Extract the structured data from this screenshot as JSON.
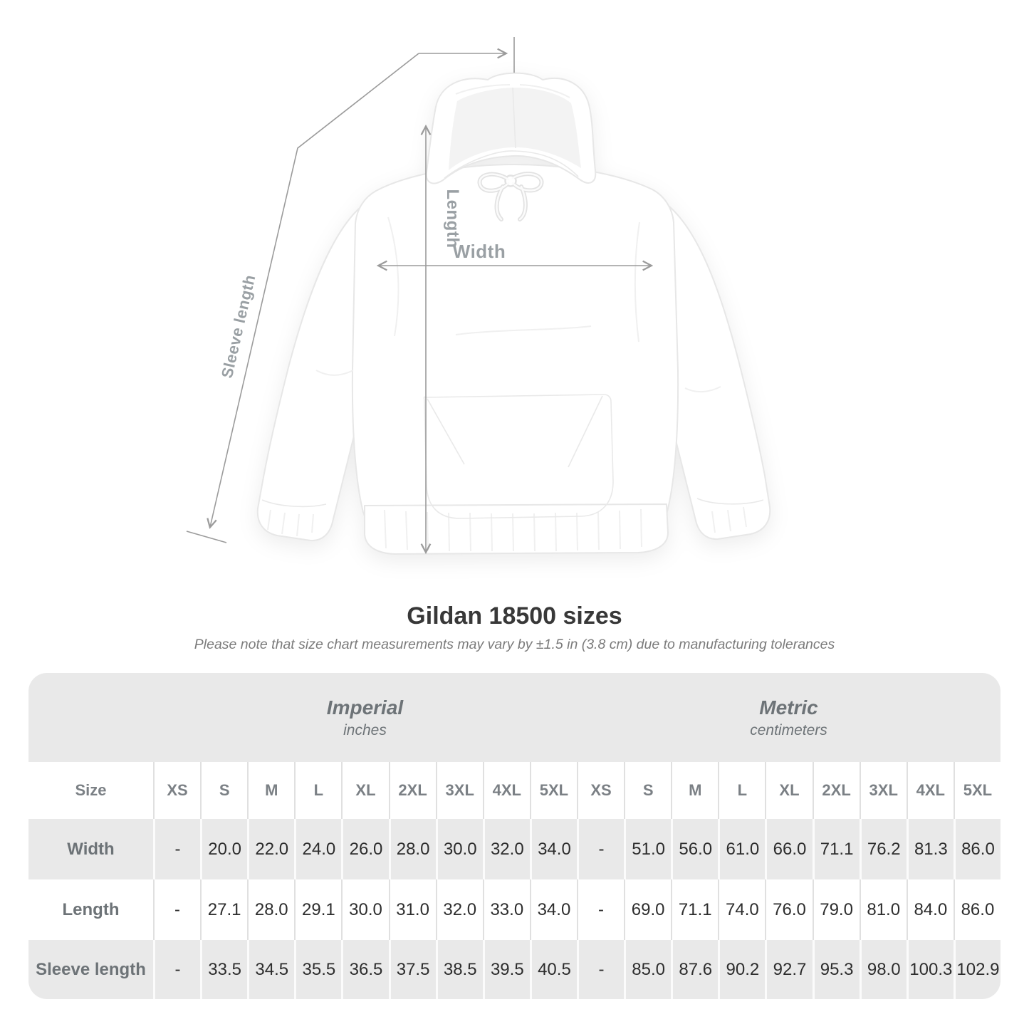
{
  "title": "Gildan 18500 sizes",
  "note": "Please note that size chart measurements may vary by ±1.5 in (3.8 cm) due to manufacturing tolerances",
  "diagram": {
    "length_label": "Length",
    "width_label": "Width",
    "sleeve_label": "Sleeve length"
  },
  "colors": {
    "table_band_gray": "#e9e9e9",
    "measure_line_gray": "#9b9b9b",
    "label_gray": "#6d7377",
    "value_dark": "#2d2d2d"
  },
  "chart_data": {
    "type": "table",
    "title": "Gildan 18500 sizes",
    "size_column_header": "Size",
    "section_headers": [
      {
        "label": "Imperial",
        "unit": "inches"
      },
      {
        "label": "Metric",
        "unit": "centimeters"
      }
    ],
    "sizes": [
      "XS",
      "S",
      "M",
      "L",
      "XL",
      "2XL",
      "3XL",
      "4XL",
      "5XL"
    ],
    "rows": [
      {
        "label": "Width",
        "imperial": [
          "-",
          "20.0",
          "22.0",
          "24.0",
          "26.0",
          "28.0",
          "30.0",
          "32.0",
          "34.0"
        ],
        "metric": [
          "-",
          "51.0",
          "56.0",
          "61.0",
          "66.0",
          "71.1",
          "76.2",
          "81.3",
          "86.0"
        ]
      },
      {
        "label": "Length",
        "imperial": [
          "-",
          "27.1",
          "28.0",
          "29.1",
          "30.0",
          "31.0",
          "32.0",
          "33.0",
          "34.0"
        ],
        "metric": [
          "-",
          "69.0",
          "71.1",
          "74.0",
          "76.0",
          "79.0",
          "81.0",
          "84.0",
          "86.0"
        ]
      },
      {
        "label": "Sleeve length",
        "imperial": [
          "-",
          "33.5",
          "34.5",
          "35.5",
          "36.5",
          "37.5",
          "38.5",
          "39.5",
          "40.5"
        ],
        "metric": [
          "-",
          "85.0",
          "87.6",
          "90.2",
          "92.7",
          "95.3",
          "98.0",
          "100.3",
          "102.9"
        ]
      }
    ]
  }
}
